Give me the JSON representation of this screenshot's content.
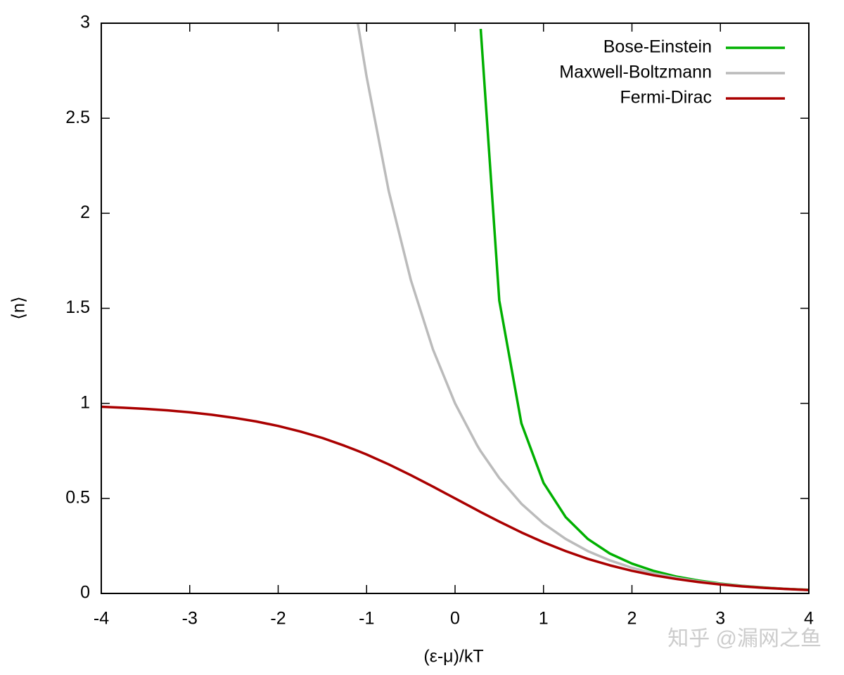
{
  "chart_data": {
    "type": "line",
    "xlabel": "(ε-μ)/kT",
    "ylabel": "⟨n⟩",
    "watermark": "知乎 @漏网之鱼",
    "x": [
      -4,
      -3.75,
      -3.5,
      -3.25,
      -3,
      -2.75,
      -2.5,
      -2.25,
      -2,
      -1.75,
      -1.5,
      -1.25,
      -1.1,
      -1,
      -0.75,
      -0.5,
      -0.25,
      0,
      0.25,
      0.29,
      0.5,
      0.75,
      1,
      1.25,
      1.5,
      1.75,
      2,
      2.25,
      2.5,
      2.75,
      3,
      3.25,
      3.5,
      3.75,
      4
    ],
    "series": [
      {
        "name": "Bose-Einstein",
        "color": "#00b000",
        "values": [
          null,
          null,
          null,
          null,
          null,
          null,
          null,
          null,
          null,
          null,
          null,
          null,
          null,
          null,
          null,
          null,
          null,
          null,
          null,
          2.97,
          1.541,
          0.895,
          0.582,
          0.402,
          0.287,
          0.21,
          0.157,
          0.118,
          0.089,
          0.068,
          0.052,
          0.04,
          0.031,
          0.024,
          0.019
        ]
      },
      {
        "name": "Maxwell-Boltzmann",
        "color": "#bbbbbb",
        "values": [
          null,
          null,
          null,
          null,
          null,
          null,
          null,
          null,
          null,
          null,
          null,
          null,
          3.0,
          2.718,
          2.117,
          1.649,
          1.284,
          1,
          0.779,
          0.748,
          0.607,
          0.472,
          0.368,
          0.287,
          0.223,
          0.174,
          0.135,
          0.105,
          0.082,
          0.064,
          0.05,
          0.039,
          0.03,
          0.024,
          0.018
        ]
      },
      {
        "name": "Fermi-Dirac",
        "color": "#aa0000",
        "values": [
          0.982,
          0.977,
          0.971,
          0.963,
          0.953,
          0.94,
          0.924,
          0.905,
          0.881,
          0.852,
          0.818,
          0.777,
          0.75,
          0.731,
          0.679,
          0.622,
          0.562,
          0.5,
          0.438,
          0.428,
          0.378,
          0.321,
          0.269,
          0.223,
          0.182,
          0.148,
          0.119,
          0.095,
          0.076,
          0.06,
          0.047,
          0.037,
          0.029,
          0.023,
          0.018
        ]
      }
    ],
    "xlim": [
      -4,
      4
    ],
    "xticks": [
      -4,
      -3,
      -2,
      -1,
      0,
      1,
      2,
      3,
      4
    ],
    "ylim": [
      0,
      3
    ],
    "yticks": [
      0,
      0.5,
      1,
      1.5,
      2,
      2.5,
      3
    ],
    "legend": "top-right",
    "grid": false
  }
}
